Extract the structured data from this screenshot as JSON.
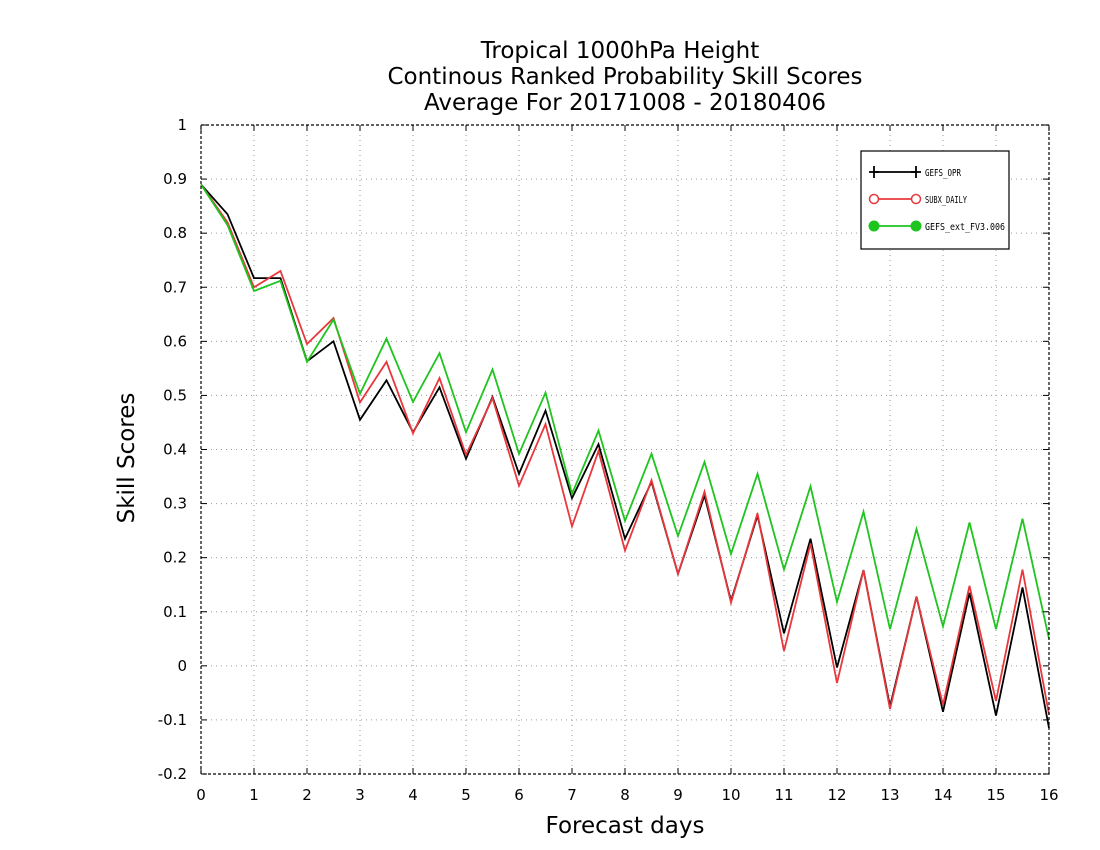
{
  "chart_data": {
    "type": "line",
    "title": [
      "Tropical 1000hPa Height",
      "Continous Ranked Probability Skill Scores",
      "Average For 20171008 - 20180406"
    ],
    "xlabel": "Forecast days",
    "ylabel": "Skill Scores",
    "xlim": [
      0,
      16
    ],
    "ylim": [
      -0.2,
      1
    ],
    "xticks": [
      0,
      1,
      2,
      3,
      4,
      5,
      6,
      7,
      8,
      9,
      10,
      11,
      12,
      13,
      14,
      15,
      16
    ],
    "yticks": [
      -0.2,
      -0.1,
      0,
      0.1,
      0.2,
      0.3,
      0.4,
      0.5,
      0.6,
      0.7,
      0.8,
      0.9,
      1
    ],
    "ytick_labels": [
      "-0.2",
      "-0.1",
      "0",
      "0.1",
      "0.2",
      "0.3",
      "0.4",
      "0.5",
      "0.6",
      "0.7",
      "0.8",
      "0.9",
      "1"
    ],
    "grid": true,
    "legend_position": "top-right",
    "x": [
      0,
      0.5,
      1,
      1.5,
      2,
      2.5,
      3,
      3.5,
      4,
      4.5,
      5,
      5.5,
      6,
      6.5,
      7,
      7.5,
      8,
      8.5,
      9,
      9.5,
      10,
      10.5,
      11,
      11.5,
      12,
      12.5,
      13,
      13.5,
      14,
      14.5,
      15,
      15.5,
      16
    ],
    "series": [
      {
        "name": "GEFS_OPR",
        "color": "#000000",
        "marker": "plus",
        "values": [
          0.89,
          0.835,
          0.717,
          0.717,
          0.563,
          0.6,
          0.455,
          0.528,
          0.432,
          0.515,
          0.383,
          0.497,
          0.355,
          0.472,
          0.31,
          0.41,
          0.235,
          0.34,
          0.17,
          0.315,
          0.12,
          0.278,
          0.06,
          0.235,
          -0.003,
          0.177,
          -0.075,
          0.128,
          -0.085,
          0.135,
          -0.092,
          0.145,
          -0.115
        ]
      },
      {
        "name": "SUBX_DAILY",
        "color": "#e8383d",
        "marker": "open-circle",
        "values": [
          0.89,
          0.82,
          0.7,
          0.73,
          0.595,
          0.643,
          0.487,
          0.562,
          0.43,
          0.532,
          0.39,
          0.495,
          0.333,
          0.447,
          0.258,
          0.397,
          0.213,
          0.343,
          0.17,
          0.322,
          0.117,
          0.282,
          0.027,
          0.226,
          -0.032,
          0.177,
          -0.08,
          0.128,
          -0.072,
          0.148,
          -0.065,
          0.178,
          -0.09
        ]
      },
      {
        "name": "GEFS_ext_FV3.006",
        "color": "#1fc41f",
        "marker": "filled-circle",
        "values": [
          0.89,
          0.815,
          0.693,
          0.712,
          0.562,
          0.64,
          0.503,
          0.605,
          0.488,
          0.578,
          0.432,
          0.548,
          0.392,
          0.505,
          0.318,
          0.435,
          0.268,
          0.392,
          0.24,
          0.377,
          0.207,
          0.355,
          0.178,
          0.332,
          0.118,
          0.285,
          0.068,
          0.253,
          0.073,
          0.265,
          0.068,
          0.272,
          0.05
        ]
      }
    ]
  }
}
